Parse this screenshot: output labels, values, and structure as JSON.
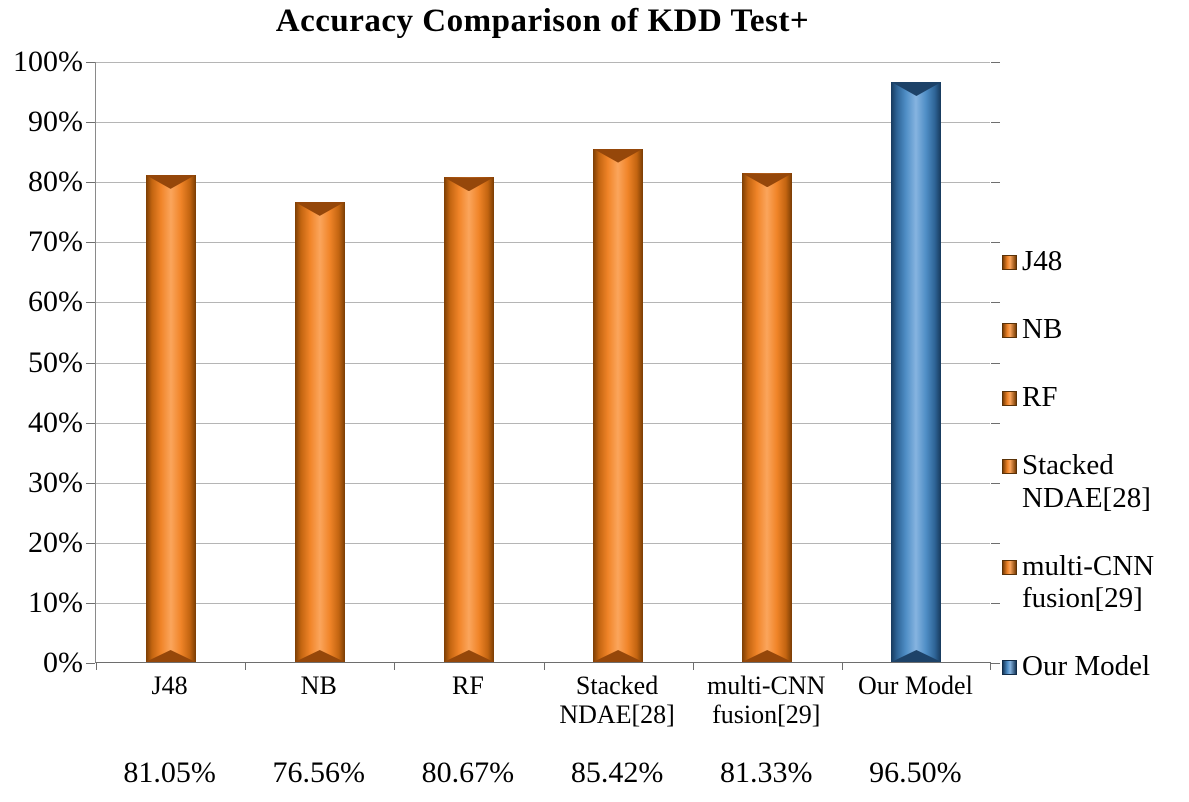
{
  "chart_data": {
    "type": "bar",
    "title": "Accuracy Comparison of KDD Test+",
    "categories": [
      "J48",
      "NB",
      "RF",
      "Stacked NDAE[28]",
      "multi-CNN fusion[29]",
      "Our Model"
    ],
    "category_label_lines": [
      [
        "J48"
      ],
      [
        "NB"
      ],
      [
        "RF"
      ],
      [
        "Stacked",
        "NDAE[28]"
      ],
      [
        "multi-CNN",
        "fusion[29]"
      ],
      [
        "Our Model"
      ]
    ],
    "values": [
      81.05,
      76.56,
      80.67,
      85.42,
      81.33,
      96.5
    ],
    "value_labels": [
      "81.05%",
      "76.56%",
      "80.67%",
      "85.42%",
      "81.33%",
      "96.50%"
    ],
    "bar_colors": [
      "orange",
      "orange",
      "orange",
      "orange",
      "orange",
      "blue"
    ],
    "xlabel": "",
    "ylabel": "",
    "ylim": [
      0,
      100
    ],
    "ytick_step": 10,
    "ytick_labels": [
      "0%",
      "10%",
      "20%",
      "30%",
      "40%",
      "50%",
      "60%",
      "70%",
      "80%",
      "90%",
      "100%"
    ],
    "grid": true,
    "legend_position": "right",
    "legend_items": [
      {
        "label_lines": [
          "J48"
        ],
        "color": "orange"
      },
      {
        "label_lines": [
          "NB"
        ],
        "color": "orange"
      },
      {
        "label_lines": [
          "RF"
        ],
        "color": "orange"
      },
      {
        "label_lines": [
          "Stacked",
          "NDAE[28]"
        ],
        "color": "orange"
      },
      {
        "label_lines": [
          "multi-CNN",
          "fusion[29]"
        ],
        "color": "orange"
      },
      {
        "label_lines": [
          "Our Model"
        ],
        "color": "blue"
      }
    ],
    "colors": {
      "orange": "#ED7D31",
      "blue": "#5B9BD5",
      "gridline": "#B5B5B5",
      "axis": "#6E6E6E",
      "text": "#000000"
    }
  }
}
